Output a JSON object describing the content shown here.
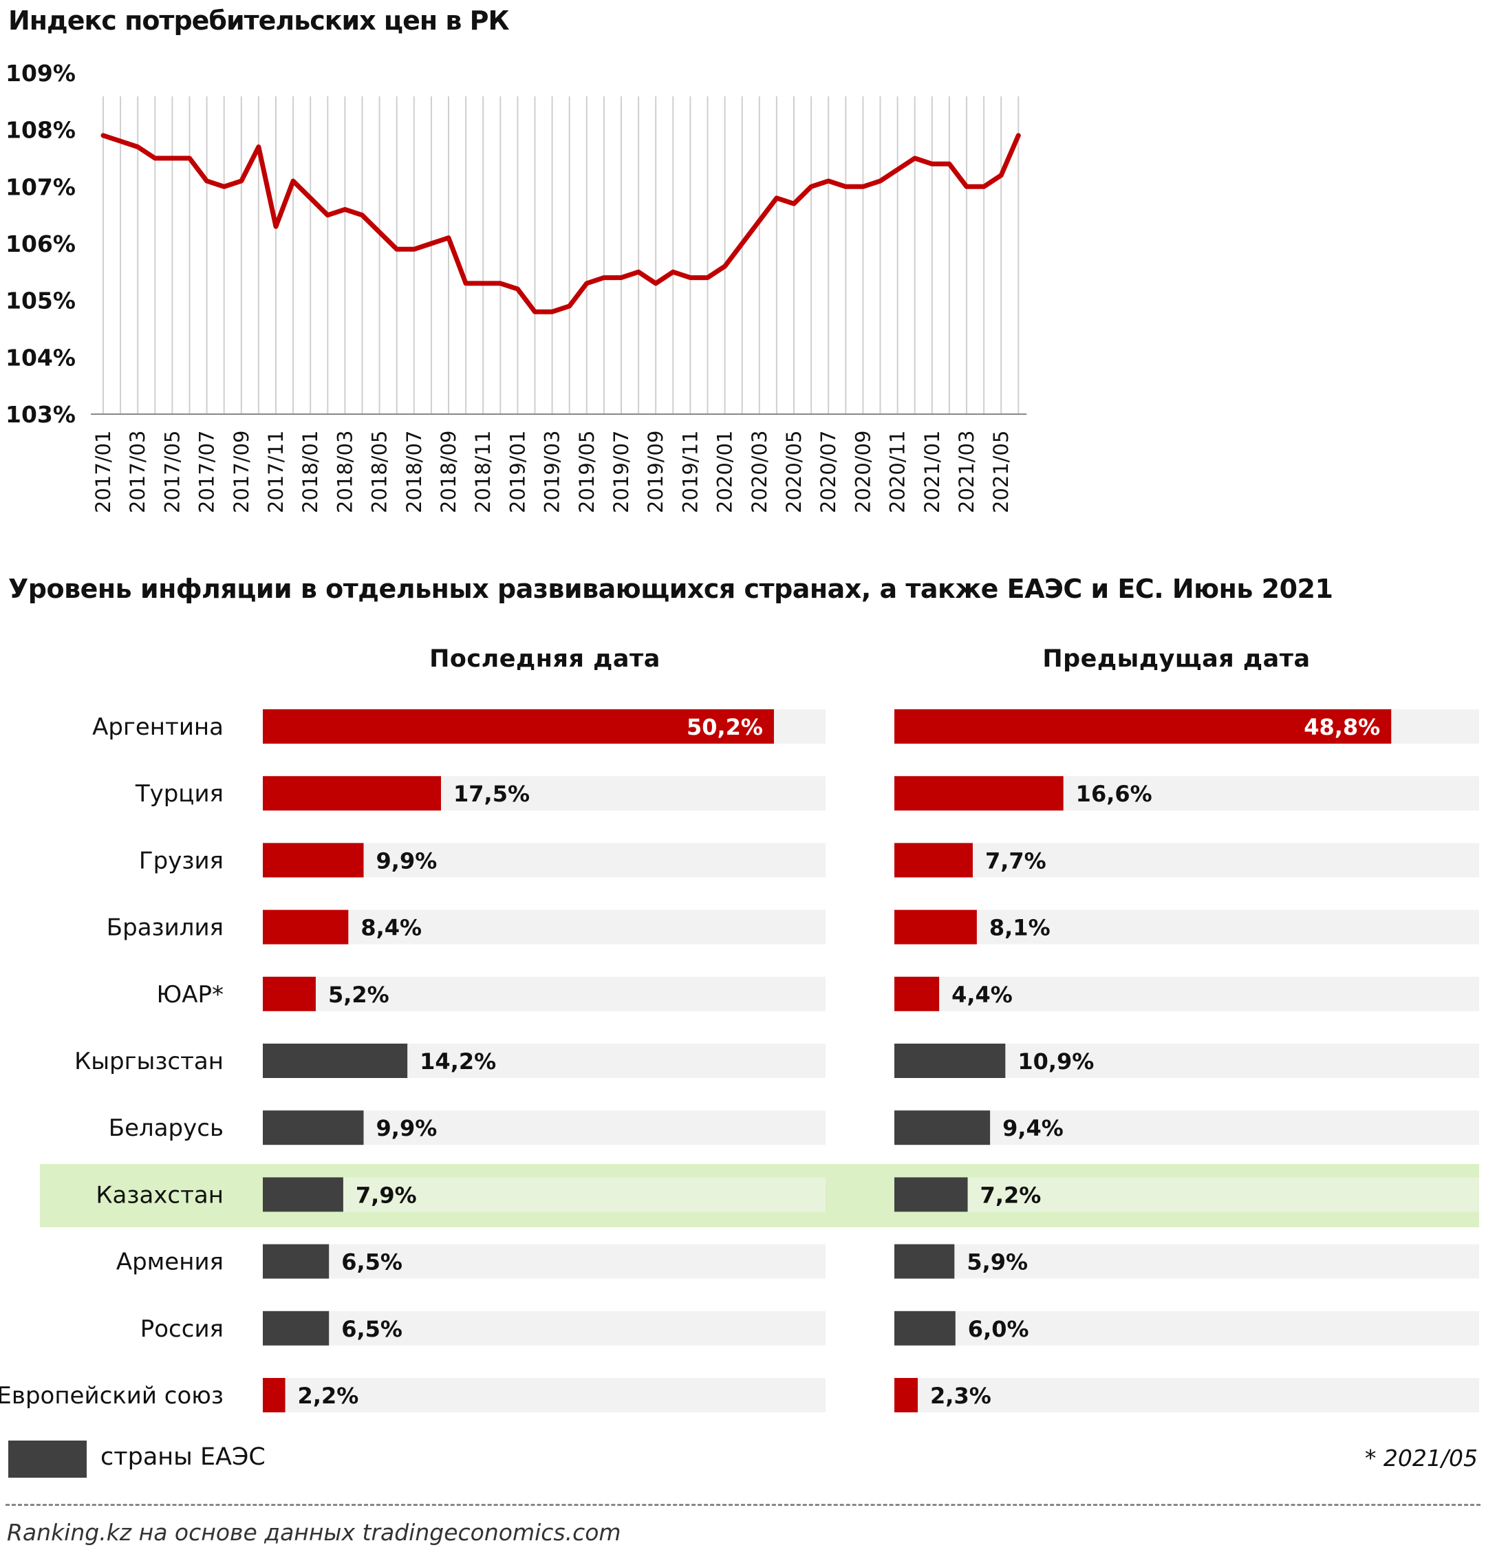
{
  "chart_data": [
    {
      "type": "line",
      "title": "Индекс потребительских цен в РК",
      "ylim": [
        103,
        109
      ],
      "y_ticks": [
        "103%",
        "104%",
        "105%",
        "106%",
        "107%",
        "108%",
        "109%"
      ],
      "x_tick_labels": [
        "2017/01",
        "2017/03",
        "2017/05",
        "2017/07",
        "2017/09",
        "2017/11",
        "2018/01",
        "2018/03",
        "2018/05",
        "2018/07",
        "2018/09",
        "2018/11",
        "2019/01",
        "2019/03",
        "2019/05",
        "2019/07",
        "2019/09",
        "2019/11",
        "2020/01",
        "2020/03",
        "2020/05",
        "2020/07",
        "2020/09",
        "2020/11",
        "2021/01",
        "2021/03",
        "2021/05"
      ],
      "x": [
        "2017/01",
        "2017/02",
        "2017/03",
        "2017/04",
        "2017/05",
        "2017/06",
        "2017/07",
        "2017/08",
        "2017/09",
        "2017/10",
        "2017/11",
        "2017/12",
        "2018/01",
        "2018/02",
        "2018/03",
        "2018/04",
        "2018/05",
        "2018/06",
        "2018/07",
        "2018/08",
        "2018/09",
        "2018/10",
        "2018/11",
        "2018/12",
        "2019/01",
        "2019/02",
        "2019/03",
        "2019/04",
        "2019/05",
        "2019/06",
        "2019/07",
        "2019/08",
        "2019/09",
        "2019/10",
        "2019/11",
        "2019/12",
        "2020/01",
        "2020/02",
        "2020/03",
        "2020/04",
        "2020/05",
        "2020/06",
        "2020/07",
        "2020/08",
        "2020/09",
        "2020/10",
        "2020/11",
        "2020/12",
        "2021/01",
        "2021/02",
        "2021/03",
        "2021/04",
        "2021/05",
        "2021/06"
      ],
      "series": [
        {
          "values": [
            107.9,
            107.8,
            107.7,
            107.5,
            107.5,
            107.5,
            107.1,
            107.0,
            107.1,
            107.7,
            106.3,
            107.1,
            106.8,
            106.5,
            106.6,
            106.5,
            106.2,
            105.9,
            105.9,
            106.0,
            106.1,
            105.3,
            105.3,
            105.3,
            105.2,
            104.8,
            104.8,
            104.9,
            105.3,
            105.4,
            105.4,
            105.5,
            105.3,
            105.5,
            105.4,
            105.4,
            105.6,
            106.0,
            106.4,
            106.8,
            106.7,
            107.0,
            107.1,
            107.0,
            107.0,
            107.1,
            107.3,
            107.5,
            107.4,
            107.4,
            107.0,
            107.0,
            107.2,
            107.9
          ],
          "color": "#c00000"
        }
      ],
      "grid": "vertical"
    },
    {
      "type": "bar",
      "title": "Уровень инфляции в отдельных развивающихся странах, а также ЕАЭС и ЕС. Июнь 2021",
      "column_headers": {
        "latest": "Последняя  дата",
        "previous": "Предыдущая  дата"
      },
      "categories": [
        "Аргентина",
        "Турция",
        "Грузия",
        "Бразилия",
        "ЮАР*",
        "Кыргызстан",
        "Беларусь",
        "Казахстан",
        "Армения",
        "Россия",
        "Европейский союз"
      ],
      "series": [
        {
          "name": "Последняя  дата",
          "values": [
            50.2,
            17.5,
            9.9,
            8.4,
            5.2,
            14.2,
            9.9,
            7.9,
            6.5,
            6.5,
            2.2
          ]
        },
        {
          "name": "Предыдущая  дата",
          "values": [
            48.8,
            16.6,
            7.7,
            8.1,
            4.4,
            10.9,
            9.4,
            7.2,
            5.9,
            6.0,
            2.3
          ]
        }
      ],
      "labels_latest": [
        "50,2%",
        "17,5%",
        "9,9%",
        "8,4%",
        "5,2%",
        "14,2%",
        "9,9%",
        "7,9%",
        "6,5%",
        "6,5%",
        "2,2%"
      ],
      "labels_previous": [
        "48,8%",
        "16,6%",
        "7,7%",
        "8,1%",
        "4,4%",
        "10,9%",
        "9,4%",
        "7,2%",
        "5,9%",
        "6,0%",
        "2,3%"
      ],
      "group": [
        "other",
        "other",
        "other",
        "other",
        "other",
        "eaeu",
        "eaeu",
        "eaeu",
        "eaeu",
        "eaeu",
        "other"
      ],
      "highlight": "Казахстан",
      "colors": {
        "other": "#c00000",
        "eaeu": "#404040",
        "track": "#f2f2f2",
        "highlight": "#dbf0c4"
      }
    }
  ],
  "legend": {
    "label": "страны ЕАЭС",
    "color": "#404040"
  },
  "footnote": "* 2021/05",
  "source": "Ranking.kz на основе данных tradingeconomics.com"
}
